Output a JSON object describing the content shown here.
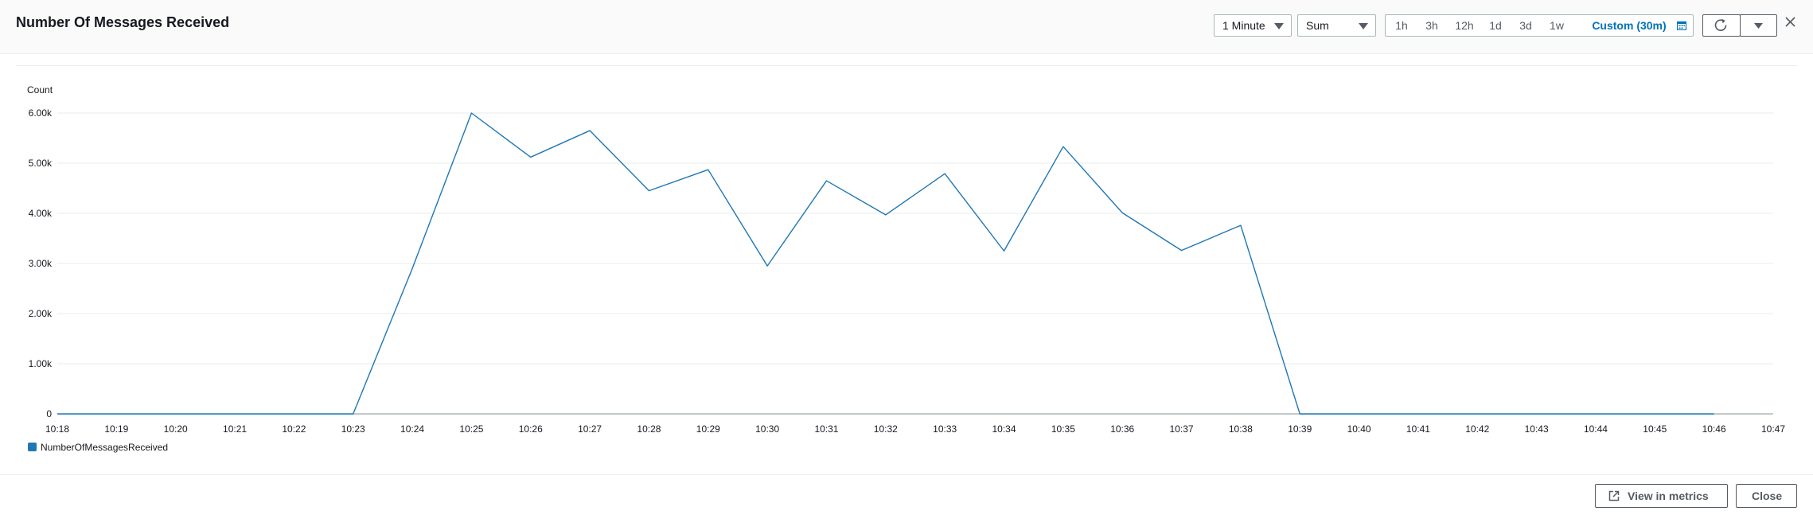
{
  "header": {
    "title": "Number Of Messages Received",
    "period_select": "1 Minute",
    "stat_select": "Sum",
    "ranges": [
      {
        "label": "1h",
        "active": false
      },
      {
        "label": "3h",
        "active": false
      },
      {
        "label": "12h",
        "active": false
      },
      {
        "label": "1d",
        "active": false
      },
      {
        "label": "3d",
        "active": false
      },
      {
        "label": "1w",
        "active": false
      },
      {
        "label": "Custom (30m)",
        "active": true
      }
    ]
  },
  "footer": {
    "view_in_metrics": "View in metrics",
    "close": "Close"
  },
  "colors": {
    "series": "#1f77b4",
    "accent": "#0073bb"
  },
  "chart_data": {
    "type": "line",
    "ylabel": "Count",
    "y_ticks": [
      "0",
      "1.00k",
      "2.00k",
      "3.00k",
      "4.00k",
      "5.00k",
      "6.00k"
    ],
    "y_tick_values": [
      0,
      1000,
      2000,
      3000,
      4000,
      5000,
      6000
    ],
    "ylim": [
      0,
      6000
    ],
    "x_ticks": [
      "10:18",
      "10:19",
      "10:20",
      "10:21",
      "10:22",
      "10:23",
      "10:24",
      "10:25",
      "10:26",
      "10:27",
      "10:28",
      "10:29",
      "10:30",
      "10:31",
      "10:32",
      "10:33",
      "10:34",
      "10:35",
      "10:36",
      "10:37",
      "10:38",
      "10:39",
      "10:40",
      "10:41",
      "10:42",
      "10:43",
      "10:44",
      "10:45",
      "10:46",
      "10:47"
    ],
    "grid": true,
    "legend_position": "bottom-left",
    "series": [
      {
        "name": "NumberOfMessagesReceived",
        "x": [
          "10:18",
          "10:19",
          "10:20",
          "10:21",
          "10:22",
          "10:23",
          "10:24",
          "10:25",
          "10:26",
          "10:27",
          "10:28",
          "10:29",
          "10:30",
          "10:31",
          "10:32",
          "10:33",
          "10:34",
          "10:35",
          "10:36",
          "10:37",
          "10:38",
          "10:39",
          "10:40",
          "10:41",
          "10:42",
          "10:43",
          "10:44",
          "10:45",
          "10:46"
        ],
        "values": [
          0,
          0,
          0,
          0,
          0,
          0,
          2900,
          6000,
          5120,
          5650,
          4450,
          4870,
          2950,
          4650,
          3970,
          4790,
          3250,
          5330,
          4010,
          3260,
          3760,
          0,
          0,
          0,
          0,
          0,
          0,
          0,
          0
        ]
      }
    ]
  }
}
